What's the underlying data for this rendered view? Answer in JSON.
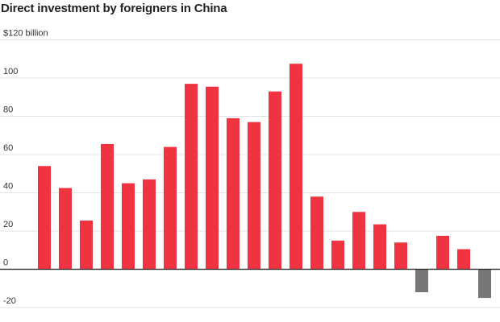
{
  "chart_data": {
    "type": "bar",
    "title": "Direct investment by foreigners in China",
    "xlabel": "",
    "ylabel": "",
    "ylim": [
      -20,
      120
    ],
    "y_ticks": [
      -20,
      0,
      20,
      40,
      60,
      80,
      100,
      120
    ],
    "y_tick_labels": [
      "-20",
      "0",
      "20",
      "40",
      "60",
      "80",
      "100",
      "$120 billion"
    ],
    "grid": true,
    "values": [
      54,
      42.5,
      25.5,
      65.5,
      45,
      47,
      64,
      97,
      95.5,
      79,
      77,
      93,
      107.5,
      38,
      15,
      30,
      23.5,
      14,
      -12,
      17.5,
      10.5,
      -15
    ],
    "colors": {
      "positive": "#ef3340",
      "negative": "#777777",
      "grid": "#e3e3e3",
      "zero_axis": "#333333"
    }
  }
}
